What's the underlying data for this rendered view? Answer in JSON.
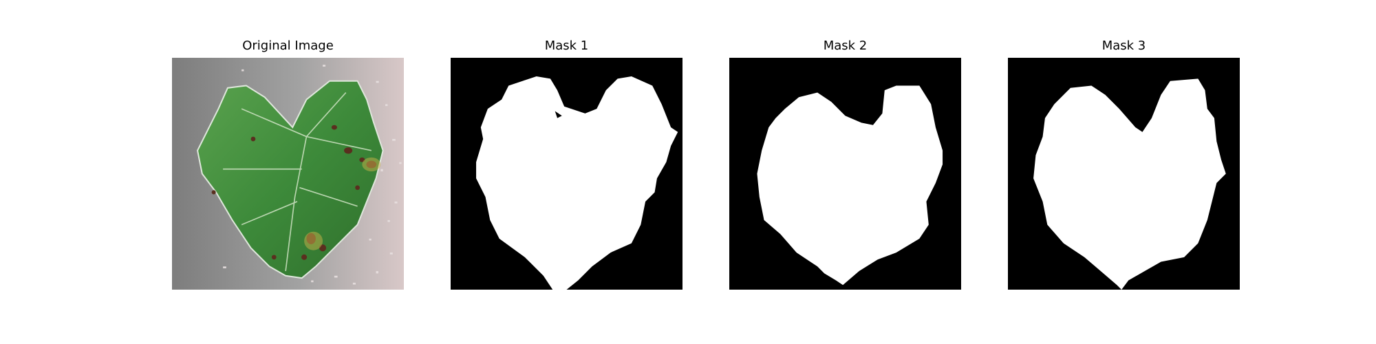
{
  "figure": {
    "panels": [
      {
        "title": "Original Image",
        "kind": "photo"
      },
      {
        "title": "Mask 1",
        "kind": "mask"
      },
      {
        "title": "Mask 2",
        "kind": "mask"
      },
      {
        "title": "Mask 3",
        "kind": "mask"
      }
    ]
  },
  "colors": {
    "background": "#ffffff",
    "mask_background": "#000000",
    "mask_foreground": "#ffffff",
    "leaf_green": "#3f8a3f",
    "lesion_brown": "#5a2f1f",
    "photo_background": "#8e8e8e"
  }
}
